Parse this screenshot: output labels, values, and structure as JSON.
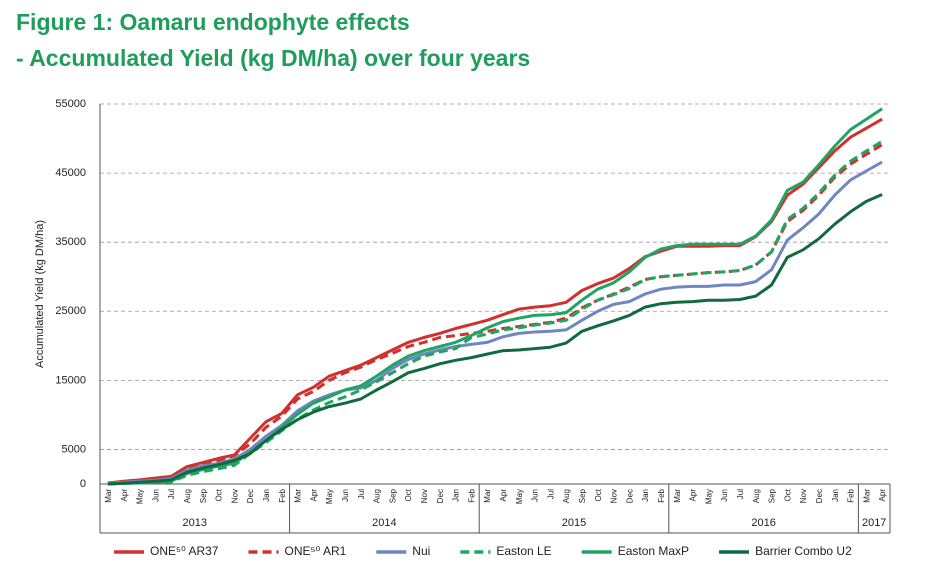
{
  "chart_data": {
    "type": "line",
    "title": "Figure 1: Oamaru endophyte effects",
    "subtitle": "- Accumulated Yield (kg DM/ha) over four years",
    "y_label": "Accumulated Yield (kg DM/ha)",
    "categories": [
      "Mar",
      "Apr",
      "May",
      "Jun",
      "Jul",
      "Aug",
      "Sep",
      "Oct",
      "Nov",
      "Dec",
      "Jan",
      "Feb",
      "Mar",
      "Apr",
      "May",
      "Jun",
      "Jul",
      "Aug",
      "Sep",
      "Oct",
      "Nov",
      "Dec",
      "Jan",
      "Feb",
      "Mar",
      "Apr",
      "May",
      "Jun",
      "Jul",
      "Aug",
      "Sep",
      "Oct",
      "Nov",
      "Dec",
      "Jan",
      "Feb",
      "Mar",
      "Apr",
      "May",
      "Jun",
      "Jul",
      "Aug",
      "Sep",
      "Oct",
      "Nov",
      "Dec",
      "Jan",
      "Feb",
      "Mar",
      "Apr"
    ],
    "years": [
      "2013",
      "2014",
      "2015",
      "2016",
      "2017"
    ],
    "ylim": [
      0,
      55000
    ],
    "yticks": [
      0,
      5000,
      15000,
      25000,
      35000,
      45000,
      55000
    ],
    "grid": true,
    "series": [
      {
        "name": "ONE⁵⁰ AR37",
        "color": "#d2302c",
        "dashed": false,
        "values": [
          150,
          400,
          600,
          850,
          1100,
          2500,
          3100,
          3700,
          4200,
          6600,
          9000,
          10200,
          12900,
          14000,
          15600,
          16400,
          17200,
          18300,
          19400,
          20500,
          21200,
          21800,
          22500,
          23100,
          23700,
          24500,
          25300,
          25600,
          25800,
          26300,
          28000,
          29000,
          29800,
          31200,
          32900,
          33700,
          34400,
          34400,
          34400,
          34500,
          34500,
          35800,
          38000,
          41800,
          43400,
          45800,
          48200,
          50200,
          51500,
          52800
        ]
      },
      {
        "name": "ONE⁵⁰ AR1",
        "color": "#d2302c",
        "dashed": true,
        "values": [
          100,
          250,
          400,
          600,
          950,
          2200,
          2800,
          3400,
          4100,
          5800,
          8200,
          9800,
          12300,
          13400,
          15000,
          16100,
          16900,
          18000,
          18900,
          19900,
          20500,
          21200,
          21500,
          21800,
          22100,
          22500,
          22800,
          23100,
          23400,
          24000,
          25500,
          26600,
          27500,
          28500,
          29600,
          30000,
          30200,
          30400,
          30600,
          30700,
          30900,
          31700,
          33600,
          38000,
          39600,
          41800,
          44400,
          46300,
          47700,
          49100
        ]
      },
      {
        "name": "Nui",
        "color": "#6f86c2",
        "dashed": false,
        "values": [
          100,
          250,
          400,
          550,
          800,
          2000,
          2600,
          3000,
          3600,
          5000,
          6900,
          8500,
          10600,
          12000,
          12900,
          13600,
          13900,
          15000,
          16700,
          18000,
          18800,
          19400,
          19900,
          20200,
          20500,
          21300,
          21800,
          22000,
          22100,
          22300,
          23700,
          25000,
          26000,
          26400,
          27500,
          28200,
          28500,
          28600,
          28600,
          28800,
          28800,
          29300,
          31000,
          35300,
          37100,
          39100,
          41800,
          44000,
          45300,
          46600
        ]
      },
      {
        "name": "Easton LE",
        "color": "#1fa463",
        "dashed": true,
        "values": [
          0,
          100,
          150,
          250,
          300,
          1250,
          1800,
          2200,
          2700,
          4400,
          6000,
          7700,
          9400,
          10700,
          11800,
          12600,
          13600,
          14800,
          16100,
          17400,
          18500,
          19100,
          19600,
          21200,
          21700,
          22300,
          22600,
          23000,
          23300,
          23700,
          25300,
          26600,
          27400,
          28300,
          29600,
          30000,
          30200,
          30400,
          30600,
          30700,
          30900,
          31700,
          33600,
          38300,
          39900,
          42100,
          44700,
          46700,
          48200,
          49600
        ]
      },
      {
        "name": "Easton MaxP",
        "color": "#1fa463",
        "dashed": false,
        "values": [
          0,
          100,
          150,
          250,
          400,
          1500,
          2100,
          2600,
          3000,
          4600,
          6300,
          8200,
          10100,
          11700,
          12600,
          13600,
          14200,
          15600,
          17200,
          18500,
          19300,
          19900,
          20500,
          21500,
          22600,
          23500,
          24000,
          24400,
          24500,
          24800,
          26600,
          28200,
          29100,
          30700,
          32800,
          34000,
          34500,
          34700,
          34700,
          34700,
          34700,
          35900,
          38200,
          42500,
          43700,
          46200,
          48900,
          51300,
          52800,
          54300
        ]
      },
      {
        "name": "Barrier Combo U2",
        "color": "#116a3f",
        "dashed": false,
        "values": [
          0,
          100,
          250,
          400,
          600,
          1700,
          2300,
          2800,
          3400,
          4400,
          6300,
          7900,
          9300,
          10400,
          11200,
          11700,
          12300,
          13600,
          14800,
          16100,
          16700,
          17400,
          17900,
          18300,
          18800,
          19300,
          19400,
          19600,
          19800,
          20400,
          22100,
          22900,
          23600,
          24400,
          25600,
          26100,
          26300,
          26400,
          26600,
          26600,
          26700,
          27200,
          28800,
          32800,
          33900,
          35500,
          37600,
          39400,
          40900,
          41900
        ]
      }
    ]
  }
}
